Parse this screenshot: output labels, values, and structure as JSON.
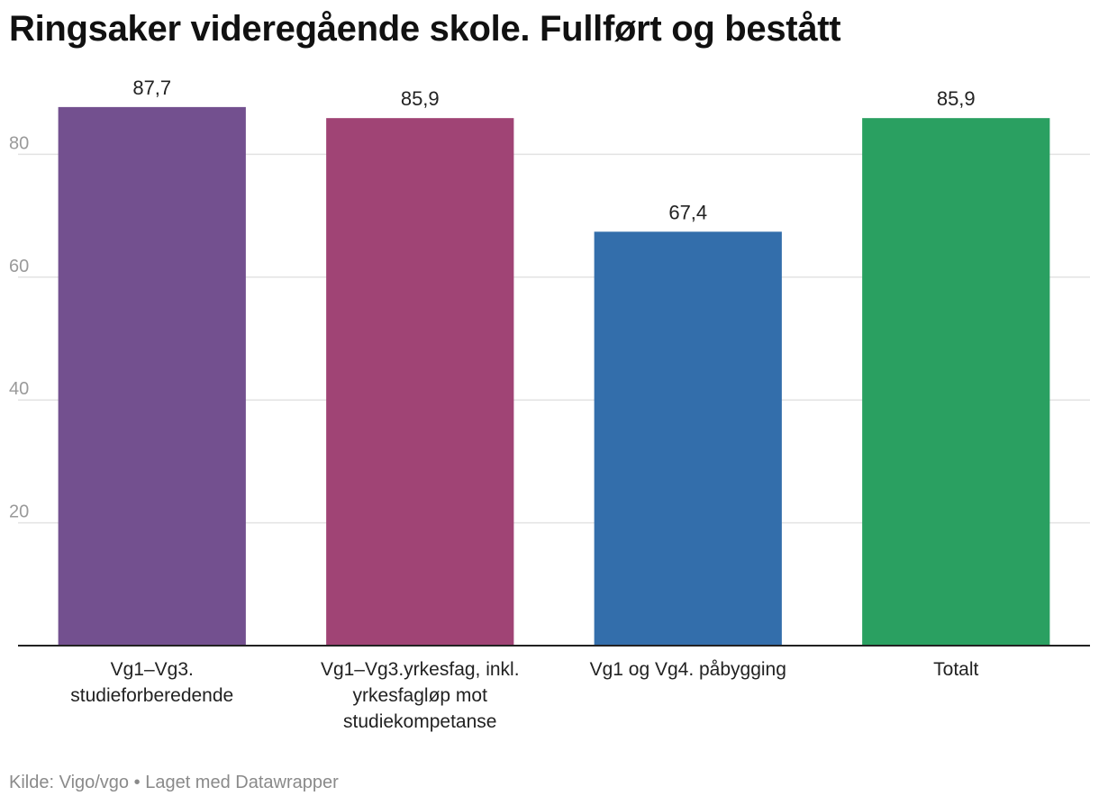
{
  "title": "Ringsaker videregående skole. Fullført og bestått",
  "footer": {
    "source": "Kilde: Vigo/vgo",
    "separator": "•",
    "credit": "Laget med Datawrapper"
  },
  "chart_data": {
    "type": "bar",
    "title": "Ringsaker videregående skole. Fullført og bestått",
    "xlabel": "",
    "ylabel": "",
    "categories": [
      [
        "Vg1–Vg3.",
        "studieforberedende"
      ],
      [
        "Vg1–Vg3.yrkesfag, inkl.",
        "yrkesfagløp mot",
        "studiekompetanse"
      ],
      [
        "Vg1 og Vg4. påbygging"
      ],
      [
        "Totalt"
      ]
    ],
    "values": [
      87.7,
      85.9,
      67.4,
      85.9
    ],
    "value_labels": [
      "87,7",
      "85,9",
      "67,4",
      "85,9"
    ],
    "colors": [
      "#73508f",
      "#a04475",
      "#336eab",
      "#2aa061"
    ],
    "ylim": [
      0,
      100
    ],
    "yticks": [
      20,
      40,
      60,
      80
    ],
    "grid": true,
    "legend": "none"
  }
}
